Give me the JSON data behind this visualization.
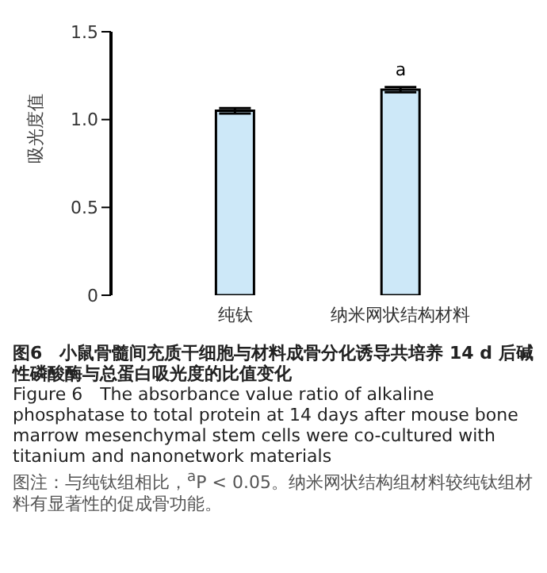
{
  "chart_data": {
    "type": "bar",
    "title": "图6　小鼠骨髓间充质干细胞与材料成骨分化诱导共培养 14 d 后碱性磷酸酶与总蛋白吸光度的比值变化",
    "subtitle": "Figure 6　The absorbance value ratio of alkaline phosphatase to total protein at 14 days after mouse bone marrow mesenchymal stem cells were co-cultured with titanium and nanonetwork materials",
    "ylabel": "吸光度值",
    "categories": [
      null,
      "纯钛",
      null,
      "纳米网状结构材料",
      null
    ],
    "values": [
      0,
      1.05,
      0,
      1.17,
      0
    ],
    "errors": [
      null,
      0.015,
      null,
      0.015,
      null
    ],
    "color": "#cde8f8",
    "ylim": [
      0,
      1.5
    ],
    "yticks": [
      0,
      0.5,
      {
        "value": 1,
        "label": "1.0"
      },
      1.5
    ],
    "grid": false,
    "legend": false,
    "annotations": [
      {
        "text": "a",
        "x": "纳米网状结构材料",
        "y": 1.17
      },
      "图注：与纯钛组相比，$^{a}$P < 0.05。纳米网状结构组材料较纯钛组材料有显著性的促成骨功能。"
    ]
  }
}
